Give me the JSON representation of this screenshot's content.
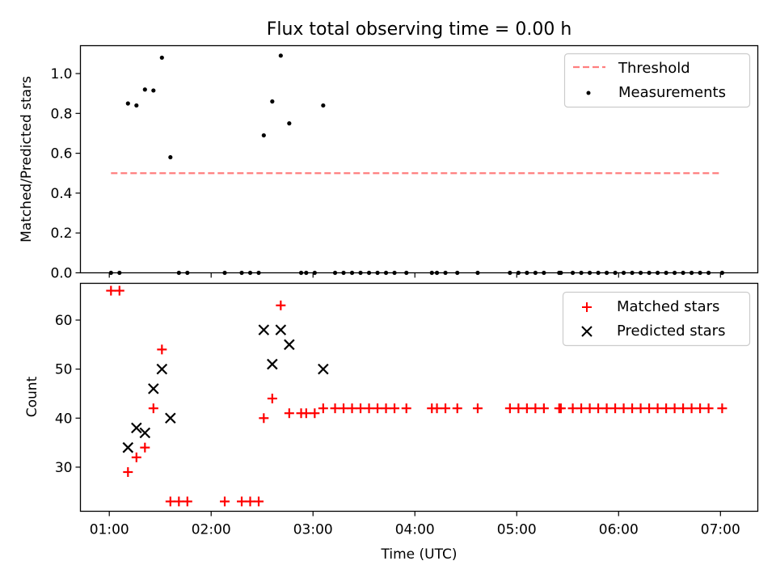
{
  "chart_data": [
    {
      "type": "scatter",
      "title": "Flux total observing time = 0.00 h",
      "xlabel": "",
      "ylabel": "Matched/Predicted stars",
      "xlim": [
        "00:43",
        "07:22"
      ],
      "ylim": [
        0,
        1.14
      ],
      "yticks": [
        0.0,
        0.2,
        0.4,
        0.6,
        0.8,
        1.0
      ],
      "ytick_labels": [
        "0.0",
        "0.2",
        "0.4",
        "0.6",
        "0.8",
        "1.0"
      ],
      "legend_position": "top-right",
      "grid": false,
      "series": [
        {
          "name": "Threshold",
          "kind": "dashed-line",
          "color": "#ff7f7f",
          "x": [
            "01:01",
            "07:00"
          ],
          "y": [
            0.5,
            0.5
          ]
        },
        {
          "name": "Measurements",
          "kind": "dot",
          "color": "#000000",
          "x": [
            "01:01",
            "01:06",
            "01:11",
            "01:16",
            "01:21",
            "01:26",
            "01:31",
            "01:36",
            "01:41",
            "01:46",
            "02:08",
            "02:18",
            "02:23",
            "02:28",
            "02:31",
            "02:36",
            "02:41",
            "02:46",
            "02:53",
            "02:56",
            "03:01",
            "03:06",
            "03:13",
            "03:18",
            "03:23",
            "03:28",
            "03:33",
            "03:38",
            "03:43",
            "03:48",
            "03:55",
            "04:10",
            "04:13",
            "04:18",
            "04:25",
            "04:37",
            "04:56",
            "05:01",
            "05:06",
            "05:11",
            "05:16",
            "05:25",
            "05:26",
            "05:33",
            "05:38",
            "05:43",
            "05:48",
            "05:53",
            "05:58",
            "06:03",
            "06:08",
            "06:13",
            "06:18",
            "06:23",
            "06:28",
            "06:33",
            "06:38",
            "06:43",
            "06:48",
            "06:53",
            "07:01"
          ],
          "y": [
            0,
            0,
            0.85,
            0.84,
            0.92,
            0.915,
            1.08,
            0.58,
            0,
            0,
            0,
            0,
            0,
            0,
            0.69,
            0.86,
            1.09,
            0.75,
            0,
            0,
            0,
            0.84,
            0,
            0,
            0,
            0,
            0,
            0,
            0,
            0,
            0,
            0,
            0,
            0,
            0,
            0,
            0,
            0,
            0,
            0,
            0,
            0,
            0,
            0,
            0,
            0,
            0,
            0,
            0,
            0,
            0,
            0,
            0,
            0,
            0,
            0,
            0,
            0,
            0,
            0,
            0
          ]
        }
      ]
    },
    {
      "type": "scatter",
      "title": "",
      "xlabel": "Time (UTC)",
      "ylabel": "Count",
      "xlim": [
        "00:43",
        "07:22"
      ],
      "ylim": [
        21,
        67.5
      ],
      "yticks": [
        30,
        40,
        50,
        60
      ],
      "ytick_labels": [
        "30",
        "40",
        "50",
        "60"
      ],
      "xticks": [
        "01:00",
        "02:00",
        "03:00",
        "04:00",
        "05:00",
        "06:00",
        "07:00"
      ],
      "xtick_labels": [
        "01:00",
        "02:00",
        "03:00",
        "04:00",
        "05:00",
        "06:00",
        "07:00"
      ],
      "legend_position": "top-right",
      "grid": false,
      "series": [
        {
          "name": "Matched stars",
          "kind": "plus",
          "color": "#ff0000",
          "x": [
            "01:01",
            "01:06",
            "01:11",
            "01:16",
            "01:21",
            "01:26",
            "01:31",
            "01:36",
            "01:41",
            "01:46",
            "02:08",
            "02:18",
            "02:23",
            "02:28",
            "02:31",
            "02:36",
            "02:41",
            "02:46",
            "02:53",
            "02:56",
            "03:01",
            "03:06",
            "03:13",
            "03:18",
            "03:23",
            "03:28",
            "03:33",
            "03:38",
            "03:43",
            "03:48",
            "03:55",
            "04:10",
            "04:13",
            "04:18",
            "04:25",
            "04:37",
            "04:56",
            "05:01",
            "05:06",
            "05:11",
            "05:16",
            "05:25",
            "05:26",
            "05:33",
            "05:38",
            "05:43",
            "05:48",
            "05:53",
            "05:58",
            "06:03",
            "06:08",
            "06:13",
            "06:18",
            "06:23",
            "06:28",
            "06:33",
            "06:38",
            "06:43",
            "06:48",
            "06:53",
            "07:01"
          ],
          "y": [
            66,
            66,
            29,
            32,
            34,
            42,
            54,
            23,
            23,
            23,
            23,
            23,
            23,
            23,
            40,
            44,
            63,
            41,
            41,
            41,
            41,
            42,
            42,
            42,
            42,
            42,
            42,
            42,
            42,
            42,
            42,
            42,
            42,
            42,
            42,
            42,
            42,
            42,
            42,
            42,
            42,
            42,
            42,
            42,
            42,
            42,
            42,
            42,
            42,
            42,
            42,
            42,
            42,
            42,
            42,
            42,
            42,
            42,
            42,
            42,
            42
          ]
        },
        {
          "name": "Predicted stars",
          "kind": "x",
          "color": "#000000",
          "x": [
            "01:11",
            "01:16",
            "01:21",
            "01:26",
            "01:31",
            "01:36",
            "02:31",
            "02:36",
            "02:41",
            "02:46",
            "03:06"
          ],
          "y": [
            34,
            38,
            37,
            46,
            50,
            40,
            58,
            51,
            58,
            55,
            50
          ]
        }
      ]
    }
  ]
}
